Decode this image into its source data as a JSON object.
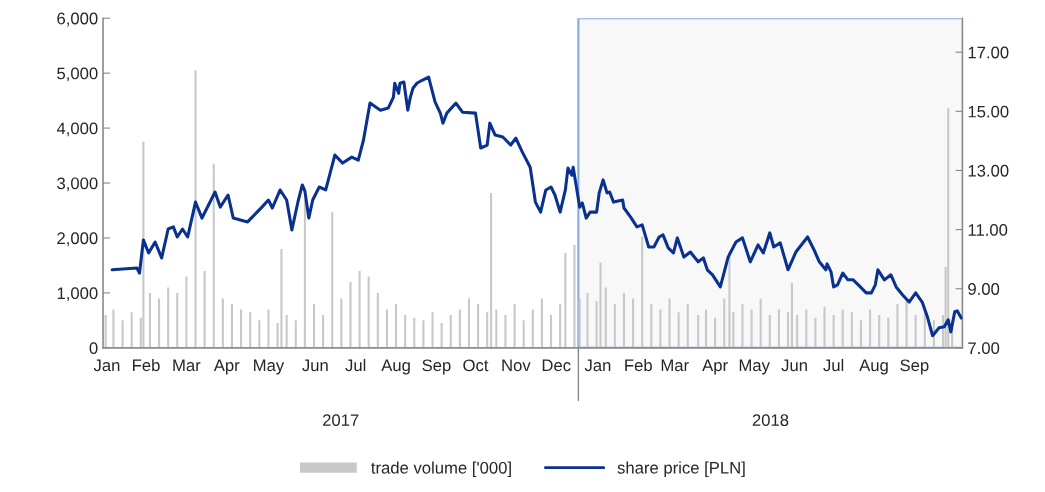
{
  "chart_data": {
    "type": "bar",
    "xlim": [
      "2017-01-01",
      "2018-10-23"
    ],
    "xticks": [
      {
        "value": "2017-01-04",
        "label": "Jan"
      },
      {
        "value": "2017-02-03",
        "label": "Feb"
      },
      {
        "value": "2017-03-06",
        "label": "Mar"
      },
      {
        "value": "2017-04-06",
        "label": "Apr"
      },
      {
        "value": "2017-05-08",
        "label": "May"
      },
      {
        "value": "2017-06-13",
        "label": "Jun"
      },
      {
        "value": "2017-07-14",
        "label": "Jul"
      },
      {
        "value": "2017-08-14",
        "label": "Aug"
      },
      {
        "value": "2017-09-14",
        "label": "Sep"
      },
      {
        "value": "2017-10-14",
        "label": "Oct"
      },
      {
        "value": "2017-11-14",
        "label": "Nov"
      },
      {
        "value": "2017-12-15",
        "label": "Dec"
      },
      {
        "value": "2018-01-16",
        "label": "Jan"
      },
      {
        "value": "2018-02-16",
        "label": "Feb"
      },
      {
        "value": "2018-03-16",
        "label": "Mar"
      },
      {
        "value": "2018-04-16",
        "label": "Apr"
      },
      {
        "value": "2018-05-16",
        "label": "May"
      },
      {
        "value": "2018-06-16",
        "label": "Jun"
      },
      {
        "value": "2018-07-16",
        "label": "Jul"
      },
      {
        "value": "2018-08-16",
        "label": "Aug"
      },
      {
        "value": "2018-09-16",
        "label": "Sep"
      }
    ],
    "ylim": [
      0,
      6000
    ],
    "yticks": [
      0,
      {
        "value": 1000,
        "label": "1,000"
      },
      {
        "value": 2000,
        "label": "2,000"
      },
      {
        "value": 3000,
        "label": "3,000"
      },
      {
        "value": 4000,
        "label": "4,000"
      },
      {
        "value": 5000,
        "label": "5,000"
      },
      {
        "value": 6000,
        "label": "6,000"
      }
    ],
    "y2lim": [
      7,
      18.15
    ],
    "y2ticks": [
      {
        "value": 7,
        "label": "7.00"
      },
      {
        "value": 9,
        "label": "9.00"
      },
      {
        "value": 11,
        "label": "11.00"
      },
      {
        "value": 13,
        "label": "13.00"
      },
      {
        "value": 15,
        "label": "15.00"
      },
      {
        "value": 17,
        "label": "17.00"
      }
    ],
    "legend": "bottom",
    "grid": false,
    "bands": [
      {
        "axis": "x",
        "from": "2018-01-01",
        "to": "2018-10-23",
        "color": "#f2f2f2"
      }
    ],
    "annotations": [
      "2017",
      "2018"
    ],
    "series": [
      {
        "name": "trade volume ['000]",
        "color": "#c8c8c8",
        "x": [
          "2017-01-03",
          "2017-01-09",
          "2017-01-16",
          "2017-01-23",
          "2017-01-30",
          "2017-02-01",
          "2017-02-06",
          "2017-02-13",
          "2017-02-20",
          "2017-02-27",
          "2017-03-06",
          "2017-03-13",
          "2017-03-20",
          "2017-03-27",
          "2017-04-03",
          "2017-04-10",
          "2017-04-17",
          "2017-04-24",
          "2017-05-01",
          "2017-05-08",
          "2017-05-15",
          "2017-05-18",
          "2017-05-22",
          "2017-05-29",
          "2017-06-05",
          "2017-06-12",
          "2017-06-19",
          "2017-06-26",
          "2017-07-03",
          "2017-07-10",
          "2017-07-17",
          "2017-07-24",
          "2017-07-31",
          "2017-08-07",
          "2017-08-14",
          "2017-08-21",
          "2017-08-28",
          "2017-09-04",
          "2017-09-11",
          "2017-09-18",
          "2017-09-25",
          "2017-10-02",
          "2017-10-09",
          "2017-10-16",
          "2017-10-23",
          "2017-10-26",
          "2017-10-30",
          "2017-11-06",
          "2017-11-13",
          "2017-11-20",
          "2017-11-27",
          "2017-12-04",
          "2017-12-11",
          "2017-12-18",
          "2017-12-22",
          "2017-12-29",
          "2018-01-02",
          "2018-01-08",
          "2018-01-15",
          "2018-01-18",
          "2018-01-22",
          "2018-01-29",
          "2018-02-05",
          "2018-02-12",
          "2018-02-19",
          "2018-02-26",
          "2018-03-05",
          "2018-03-12",
          "2018-03-19",
          "2018-03-26",
          "2018-04-03",
          "2018-04-09",
          "2018-04-16",
          "2018-04-23",
          "2018-04-27",
          "2018-04-30",
          "2018-05-07",
          "2018-05-14",
          "2018-05-21",
          "2018-05-28",
          "2018-06-04",
          "2018-06-11",
          "2018-06-14",
          "2018-06-18",
          "2018-06-25",
          "2018-07-02",
          "2018-07-09",
          "2018-07-16",
          "2018-07-23",
          "2018-07-30",
          "2018-08-06",
          "2018-08-13",
          "2018-08-20",
          "2018-08-27",
          "2018-09-03",
          "2018-09-10",
          "2018-09-17",
          "2018-09-24",
          "2018-10-01",
          "2018-10-08",
          "2018-10-10",
          "2018-10-12",
          "2018-10-15"
        ],
        "values": [
          600,
          700,
          500,
          650,
          550,
          3750,
          1000,
          900,
          1100,
          1000,
          1300,
          5050,
          1400,
          3350,
          900,
          800,
          700,
          650,
          500,
          700,
          450,
          1800,
          600,
          500,
          2700,
          800,
          600,
          2470,
          900,
          1200,
          1400,
          1300,
          1000,
          700,
          800,
          600,
          550,
          500,
          650,
          450,
          600,
          700,
          900,
          800,
          650,
          2820,
          700,
          600,
          800,
          500,
          700,
          900,
          600,
          800,
          1730,
          1870,
          900,
          1000,
          850,
          1550,
          1100,
          800,
          1000,
          900,
          2020,
          800,
          700,
          900,
          650,
          800,
          600,
          700,
          550,
          900,
          1750,
          650,
          800,
          700,
          900,
          600,
          700,
          650,
          1180,
          600,
          700,
          550,
          750,
          600,
          700,
          650,
          500,
          700,
          600,
          550,
          800,
          900,
          600,
          700,
          500,
          600,
          1470,
          4360,
          500
        ]
      },
      {
        "name": "share price [PLN]",
        "type": "line",
        "axis": "y2",
        "color": "#0b318f",
        "x": [
          "2017-01-08",
          "2017-01-27",
          "2017-01-29",
          "2017-02-01",
          "2017-02-05",
          "2017-02-10",
          "2017-02-15",
          "2017-02-20",
          "2017-02-24",
          "2017-02-27",
          "2017-03-03",
          "2017-03-07",
          "2017-03-13",
          "2017-03-18",
          "2017-03-28",
          "2017-04-01",
          "2017-04-07",
          "2017-04-11",
          "2017-04-22",
          "2017-05-03",
          "2017-05-08",
          "2017-05-11",
          "2017-05-17",
          "2017-05-22",
          "2017-05-26",
          "2017-05-31",
          "2017-06-03",
          "2017-06-05",
          "2017-06-08",
          "2017-06-11",
          "2017-06-16",
          "2017-06-21",
          "2017-06-28",
          "2017-07-04",
          "2017-07-11",
          "2017-07-16",
          "2017-07-20",
          "2017-07-25",
          "2017-08-02",
          "2017-08-08",
          "2017-08-12",
          "2017-08-13",
          "2017-08-16",
          "2017-08-17",
          "2017-08-20",
          "2017-08-23",
          "2017-08-25",
          "2017-08-27",
          "2017-08-30",
          "2017-09-03",
          "2017-09-08",
          "2017-09-13",
          "2017-09-17",
          "2017-09-19",
          "2017-09-22",
          "2017-09-29",
          "2017-10-04",
          "2017-10-14",
          "2017-10-18",
          "2017-10-23",
          "2017-10-25",
          "2017-10-29",
          "2017-11-04",
          "2017-11-10",
          "2017-11-14",
          "2017-11-19",
          "2017-11-25",
          "2017-11-29",
          "2017-12-03",
          "2017-12-07",
          "2017-12-11",
          "2017-12-14",
          "2017-12-18",
          "2017-12-22",
          "2017-12-24",
          "2017-12-27",
          "2017-12-28",
          "2018-01-02",
          "2018-01-04",
          "2018-01-07",
          "2018-01-10",
          "2018-01-15",
          "2018-01-17",
          "2018-01-20",
          "2018-01-23",
          "2018-01-25",
          "2018-01-28",
          "2018-02-04",
          "2018-02-05",
          "2018-02-10",
          "2018-02-15",
          "2018-02-19",
          "2018-02-24",
          "2018-02-28",
          "2018-03-04",
          "2018-03-07",
          "2018-03-11",
          "2018-03-15",
          "2018-03-18",
          "2018-03-23",
          "2018-03-28",
          "2018-04-03",
          "2018-04-07",
          "2018-04-10",
          "2018-04-14",
          "2018-04-20",
          "2018-04-26",
          "2018-05-02",
          "2018-05-07",
          "2018-05-13",
          "2018-05-19",
          "2018-05-23",
          "2018-05-28",
          "2018-05-31",
          "2018-06-05",
          "2018-06-11",
          "2018-06-17",
          "2018-06-26",
          "2018-07-01",
          "2018-07-05",
          "2018-07-10",
          "2018-07-11",
          "2018-07-14",
          "2018-07-16",
          "2018-07-19",
          "2018-07-23",
          "2018-07-27",
          "2018-07-31",
          "2018-08-04",
          "2018-08-10",
          "2018-08-14",
          "2018-08-17",
          "2018-08-19",
          "2018-08-24",
          "2018-08-29",
          "2018-09-02",
          "2018-09-07",
          "2018-09-12",
          "2018-09-17",
          "2018-09-22",
          "2018-09-26",
          "2018-09-30",
          "2018-10-05",
          "2018-10-09",
          "2018-10-12",
          "2018-10-14",
          "2018-10-17",
          "2018-10-19",
          "2018-10-22"
        ],
        "values": [
          9.64,
          9.7,
          9.53,
          10.65,
          10.21,
          10.58,
          10.04,
          11.02,
          11.09,
          10.75,
          11.02,
          10.75,
          11.93,
          11.39,
          12.27,
          11.76,
          12.17,
          11.39,
          11.26,
          11.76,
          12.0,
          11.73,
          12.34,
          12.0,
          10.99,
          12.0,
          12.51,
          12.3,
          11.39,
          12.0,
          12.44,
          12.34,
          13.52,
          13.25,
          13.45,
          13.35,
          14.03,
          15.28,
          15.04,
          15.11,
          15.48,
          15.95,
          15.61,
          15.95,
          15.99,
          15.04,
          15.48,
          15.78,
          15.95,
          16.05,
          16.16,
          15.31,
          14.94,
          14.6,
          14.94,
          15.28,
          14.97,
          14.94,
          13.76,
          13.86,
          14.6,
          14.2,
          14.13,
          13.86,
          14.09,
          13.62,
          13.11,
          11.93,
          11.59,
          12.34,
          12.44,
          12.17,
          11.59,
          12.34,
          13.08,
          12.84,
          13.11,
          11.76,
          11.9,
          11.39,
          11.59,
          11.59,
          12.24,
          12.68,
          12.24,
          12.27,
          11.93,
          12.0,
          11.73,
          11.43,
          11.09,
          11.16,
          10.41,
          10.41,
          10.75,
          10.82,
          10.38,
          10.21,
          10.72,
          10.07,
          10.24,
          9.91,
          10.04,
          9.64,
          9.47,
          9.06,
          10.07,
          10.58,
          10.72,
          9.91,
          10.48,
          10.21,
          10.89,
          10.41,
          10.55,
          9.64,
          10.24,
          10.75,
          10.31,
          9.91,
          9.64,
          9.84,
          9.57,
          9.06,
          9.13,
          9.53,
          9.3,
          9.3,
          9.13,
          8.86,
          8.86,
          9.13,
          9.64,
          9.3,
          9.47,
          9.06,
          8.79,
          8.55,
          8.86,
          8.55,
          8.05,
          7.41,
          7.68,
          7.71,
          7.95,
          7.54,
          8.22,
          8.25,
          8.01
        ]
      }
    ]
  }
}
